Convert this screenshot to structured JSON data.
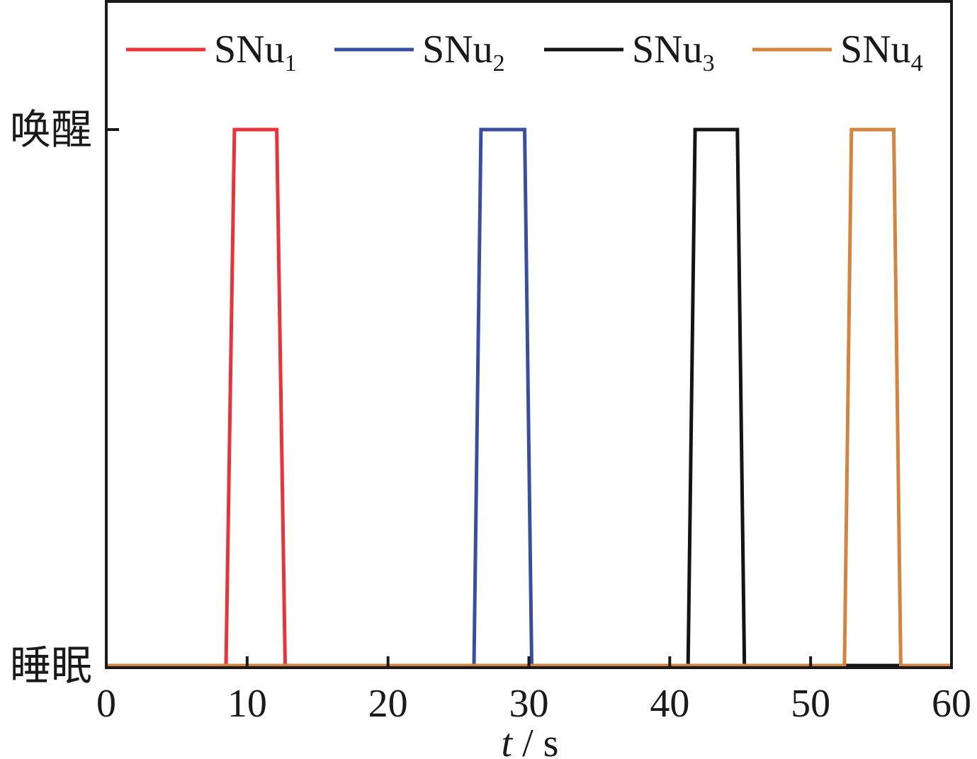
{
  "chart_data": {
    "type": "line",
    "xlabel_var": "t",
    "xlabel_sep": " / ",
    "xlabel_unit": "s",
    "xlim": [
      0,
      60
    ],
    "x_ticks": [
      "0",
      "10",
      "20",
      "30",
      "40",
      "50",
      "60"
    ],
    "y_categories": [
      "睡眠",
      "唤醒"
    ],
    "ylim": [
      0,
      1
    ],
    "legend_placement": "top",
    "grid": false,
    "series": [
      {
        "name_main": "SNu",
        "name_sub": "1",
        "color": "#e8333a",
        "x": [
          0,
          8.5,
          9.1,
          12.1,
          12.7,
          60
        ],
        "y": [
          0,
          0,
          1,
          1,
          0,
          0
        ]
      },
      {
        "name_main": "SNu",
        "name_sub": "2",
        "color": "#3a4ea0",
        "x": [
          0,
          26.1,
          26.6,
          29.7,
          30.2,
          60
        ],
        "y": [
          0,
          0,
          1,
          1,
          0,
          0
        ]
      },
      {
        "name_main": "SNu",
        "name_sub": "3",
        "color": "#141414",
        "x": [
          0,
          41.3,
          41.8,
          44.8,
          45.3,
          60
        ],
        "y": [
          0,
          0,
          1,
          1,
          0,
          0
        ]
      },
      {
        "name_main": "SNu",
        "name_sub": "4",
        "color": "#d4843e",
        "x": [
          0,
          52.4,
          52.9,
          55.9,
          56.4,
          60
        ],
        "y": [
          0,
          0,
          1,
          1,
          0,
          0
        ]
      }
    ]
  }
}
